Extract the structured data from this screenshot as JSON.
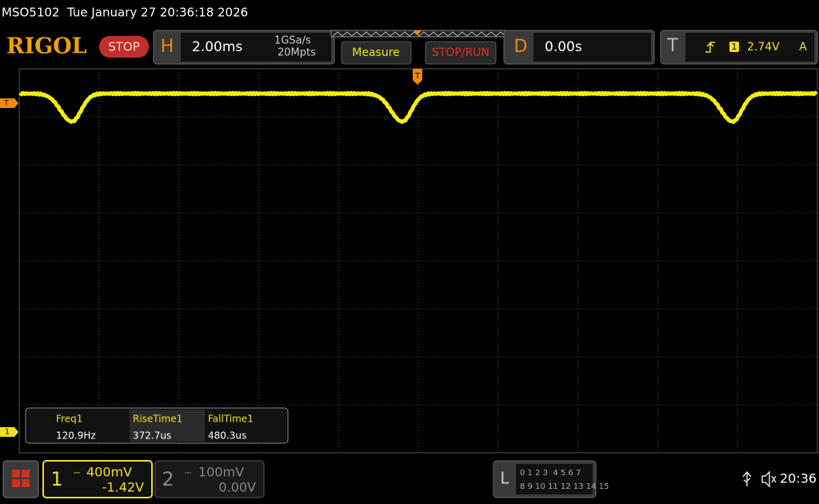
{
  "status_bar": {
    "model": "MSO5102",
    "datetime": "Tue January 27 20:36:18 2026"
  },
  "toolbar": {
    "logo": "RIGOL",
    "run_state": "STOP",
    "horizontal": {
      "label": "H",
      "timebase": "2.00ms",
      "sample_rate": "1GSa/s",
      "memory_depth": "20Mpts"
    },
    "measure_button": "Measure",
    "stop_run_button": "STOP/RUN",
    "delay": {
      "label": "D",
      "value": "0.00s"
    },
    "trigger": {
      "label": "T",
      "source": "1",
      "level": "2.74V",
      "mode": "A"
    }
  },
  "screen_markers": {
    "trigger_level": "T",
    "trigger_position": "T",
    "channel1": "1"
  },
  "measurements": {
    "headers": [
      "Freq1",
      "RiseTime1",
      "FallTime1"
    ],
    "values": [
      "120.9Hz",
      "372.7us",
      "480.3us"
    ]
  },
  "bottom_bar": {
    "channel1": {
      "number": "1",
      "scale": "400mV",
      "offset": "-1.42V"
    },
    "channel2": {
      "number": "2",
      "scale": "100mV",
      "offset": "0.00V"
    },
    "logic": {
      "label": "L",
      "row1": "0 1 2 3  4 5 6 7",
      "row2": "8 9 10 11 12 13 14 15"
    },
    "clock": "20:36"
  }
}
